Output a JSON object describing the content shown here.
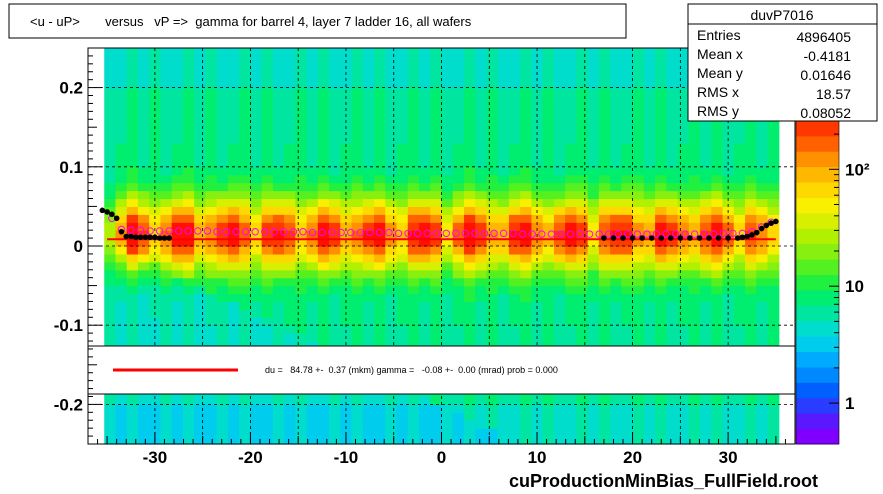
{
  "chart_data": {
    "type": "heatmap",
    "title": "<u - uP>       versus   vP =>  gamma for barrel 4, layer 7 ladder 16, all wafers",
    "xlim": [
      -37,
      37
    ],
    "ylim": [
      -0.25,
      0.25
    ],
    "x_ticks": [
      "-30",
      "-20",
      "-10",
      "0",
      "10",
      "20",
      "30"
    ],
    "x_tick_values": [
      -30,
      -20,
      -10,
      0,
      10,
      20,
      30
    ],
    "y_ticks": [
      "0.2",
      "0.1",
      "0",
      "-0.1",
      "-0.2"
    ],
    "y_tick_values": [
      0.2,
      0.1,
      0,
      -0.1,
      -0.2
    ],
    "z_scale": "log",
    "z_ticks": [
      "10²",
      "10",
      "1"
    ],
    "z_tick_values": [
      100,
      10,
      1
    ],
    "grid": true,
    "stats": {
      "name": "duvP7016",
      "rows": [
        {
          "label": "Entries",
          "value": "4896405"
        },
        {
          "label": "Mean x",
          "value": "-0.4181"
        },
        {
          "label": "Mean y",
          "value": "0.01646"
        },
        {
          "label": "RMS x",
          "value": "18.57"
        },
        {
          "label": "RMS y",
          "value": "0.08052"
        }
      ]
    },
    "fit_legend": "du =   84.78 +-  0.37 (mkm) gamma =   -0.08 +-  0.00 (mrad) prob = 0.000",
    "fit_line": {
      "x": [
        -35,
        35
      ],
      "y": [
        0.0085,
        0.0085
      ]
    },
    "profile_points_open": {
      "x": [
        -34.5,
        -33.5,
        -32.5,
        -31.5,
        -30.5,
        -29.5,
        -28.5,
        -27.5,
        -26.5,
        -25.5,
        -24.5,
        -23.5,
        -22.5,
        -21.5,
        -20.5,
        -19.5,
        -18.5,
        -17.5,
        -16.5,
        -15.5,
        -14.5,
        -13.5,
        -12.5,
        -11.5,
        -10.5,
        -9.5,
        -8.5,
        -7.5,
        -6.5,
        -5.5,
        -4.5,
        -3.5,
        -2.5,
        -1.5,
        -0.5,
        0.5,
        1.5,
        2.5,
        3.5,
        4.5,
        5.5,
        6.5,
        7.5,
        8.5,
        9.5,
        10.5,
        11.5,
        12.5,
        13.5,
        14.5,
        15.5,
        16.5,
        17.5,
        18.5,
        19.5,
        20.5,
        21.5,
        22.5,
        23.5,
        24.5,
        25.5,
        26.5,
        27.5,
        28.5,
        29.5,
        30.5,
        31.5,
        32.5,
        33.5,
        34.5
      ],
      "y": [
        0.035,
        0.021,
        0.02,
        0.02,
        0.019,
        0.019,
        0.019,
        0.019,
        0.019,
        0.019,
        0.019,
        0.018,
        0.018,
        0.018,
        0.018,
        0.018,
        0.018,
        0.018,
        0.018,
        0.018,
        0.018,
        0.017,
        0.017,
        0.017,
        0.017,
        0.017,
        0.017,
        0.017,
        0.017,
        0.017,
        0.016,
        0.016,
        0.016,
        0.016,
        0.016,
        0.016,
        0.016,
        0.016,
        0.016,
        0.016,
        0.016,
        0.016,
        0.016,
        0.015,
        0.015,
        0.015,
        0.015,
        0.015,
        0.015,
        0.015,
        0.015,
        0.015,
        0.015,
        0.015,
        0.015,
        0.015,
        0.015,
        0.015,
        0.015,
        0.015,
        0.015,
        0.015,
        0.015,
        0.015,
        0.016,
        0.016,
        0.016,
        0.018,
        0.024,
        0.03
      ]
    },
    "profile_points_filled": {
      "x": [
        -35.5,
        -35.0,
        -34.5,
        -34.0,
        -33.5,
        -33.0,
        -32.5,
        -32.0,
        -31.5,
        -31.0,
        -30.5,
        -30.0,
        -29.5,
        -29.0,
        -28.5,
        17.0,
        18.0,
        19.0,
        20.0,
        21.0,
        22.0,
        23.0,
        24.0,
        25.0,
        26.0,
        27.0,
        28.0,
        29.0,
        30.0,
        31.0,
        31.5,
        32.0,
        32.5,
        33.0,
        33.5,
        34.0,
        34.5,
        35.0
      ],
      "y": [
        0.045,
        0.043,
        0.04,
        0.035,
        0.018,
        0.012,
        0.012,
        0.011,
        0.011,
        0.011,
        0.011,
        0.011,
        0.01,
        0.01,
        0.01,
        0.01,
        0.01,
        0.01,
        0.01,
        0.01,
        0.01,
        0.01,
        0.01,
        0.01,
        0.01,
        0.01,
        0.01,
        0.01,
        0.01,
        0.01,
        0.011,
        0.012,
        0.014,
        0.017,
        0.022,
        0.026,
        0.029,
        0.031
      ]
    }
  },
  "footer": "cuProductionMinBias_FullField.root",
  "colors": {
    "fit_line": "#ff0000",
    "profile": "#ff00ff",
    "marker": "#000000"
  }
}
